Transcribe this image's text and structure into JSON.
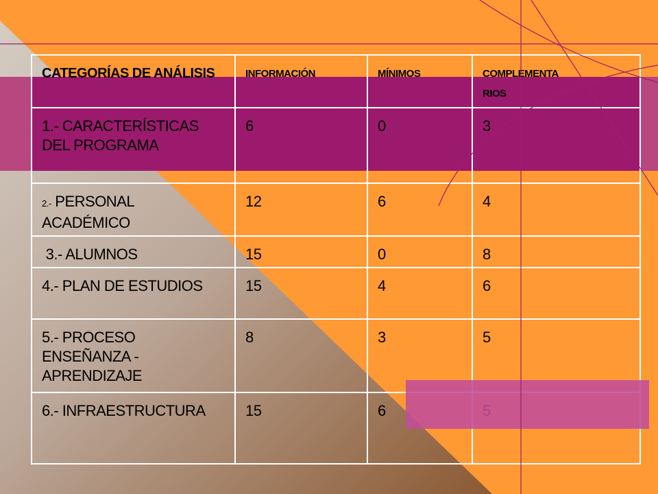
{
  "slide": {
    "colors": {
      "background": "#FF9933",
      "magenta_band": "#9C1A6E",
      "overlay_box": "#C24D9A",
      "grid_line": "#A01D6E",
      "table_border": "#FFFFFF"
    },
    "table": {
      "headers": {
        "category": "CATEGORÍAS DE ANÁLISIS",
        "info": "INFORMACIÓN",
        "minimos": "MÍNIMOS",
        "complementarios_line1": "COMPLEMENTA",
        "complementarios_line2": "RIOS"
      },
      "rows": [
        {
          "category": "1.- CARACTERÍSTICAS DEL PROGRAMA",
          "info": "6",
          "minimos": "0",
          "complementarios": "3"
        },
        {
          "category_prefix": "2.-",
          "category_text": " PERSONAL ACADÉMICO",
          "info": "12",
          "minimos": "6",
          "complementarios": "4"
        },
        {
          "category": " 3.- ALUMNOS",
          "info": "15",
          "minimos": "0",
          "complementarios": "8"
        },
        {
          "category": "4.- PLAN DE ESTUDIOS",
          "info": "15",
          "minimos": "4",
          "complementarios": "6"
        },
        {
          "category": "5.- PROCESO ENSEÑANZA -APRENDIZAJE",
          "info": "8",
          "minimos": "3",
          "complementarios": "5"
        },
        {
          "category": "6.- INFRAESTRUCTURA",
          "info": "15",
          "minimos": "6",
          "complementarios": "5"
        }
      ]
    }
  }
}
